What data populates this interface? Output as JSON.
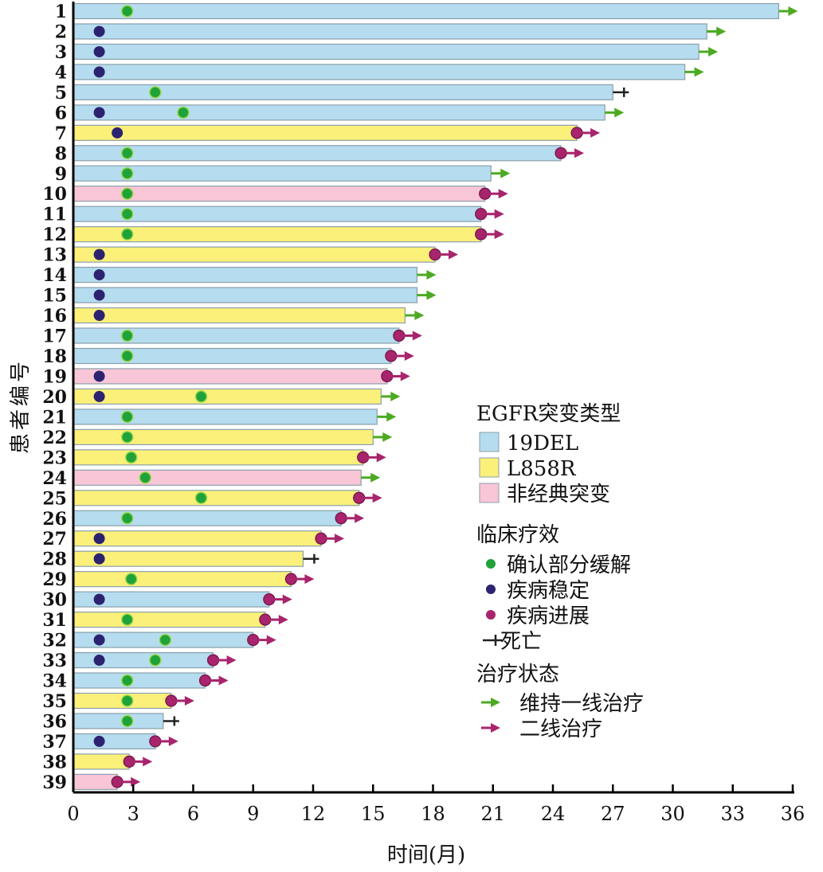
{
  "chart_data": {
    "type": "swimmer",
    "xlabel": "时间(月)",
    "ylabel": "患者编号",
    "xlim": [
      0,
      36
    ],
    "xticks": [
      0,
      3,
      6,
      9,
      12,
      15,
      18,
      21,
      24,
      27,
      30,
      33,
      36
    ],
    "colors": {
      "19DEL": "#b5dcef",
      "L858R": "#fbf07a",
      "uncommon": "#f9c6d8",
      "PR": "#1fa23a",
      "SD": "#2c2370",
      "PD": "#a8246c",
      "continue": "#4caa22",
      "second_line": "#a8246c",
      "death": "#222222"
    },
    "patients": [
      {
        "id": "1",
        "type": "19DEL",
        "duration": 35.3,
        "SD": null,
        "PR": 2.7,
        "end": "continue"
      },
      {
        "id": "2",
        "type": "19DEL",
        "duration": 31.7,
        "SD": 1.3,
        "PR": null,
        "end": "continue"
      },
      {
        "id": "3",
        "type": "19DEL",
        "duration": 31.3,
        "SD": 1.3,
        "PR": null,
        "end": "continue"
      },
      {
        "id": "4",
        "type": "19DEL",
        "duration": 30.6,
        "SD": 1.3,
        "PR": null,
        "end": "continue"
      },
      {
        "id": "5",
        "type": "19DEL",
        "duration": 27.0,
        "SD": null,
        "PR": 4.1,
        "end": "death"
      },
      {
        "id": "6",
        "type": "19DEL",
        "duration": 26.6,
        "SD": 1.3,
        "PR": 5.5,
        "end": "continue"
      },
      {
        "id": "7",
        "type": "L858R",
        "duration": 25.2,
        "SD": 2.2,
        "PR": null,
        "end": "second_line"
      },
      {
        "id": "8",
        "type": "19DEL",
        "duration": 24.4,
        "SD": null,
        "PR": 2.7,
        "end": "second_line"
      },
      {
        "id": "9",
        "type": "19DEL",
        "duration": 20.9,
        "SD": null,
        "PR": 2.7,
        "end": "continue"
      },
      {
        "id": "10",
        "type": "uncommon",
        "duration": 20.6,
        "SD": null,
        "PR": 2.7,
        "end": "second_line"
      },
      {
        "id": "11",
        "type": "19DEL",
        "duration": 20.4,
        "SD": null,
        "PR": 2.7,
        "end": "second_line"
      },
      {
        "id": "12",
        "type": "L858R",
        "duration": 20.4,
        "SD": null,
        "PR": 2.7,
        "end": "second_line"
      },
      {
        "id": "13",
        "type": "L858R",
        "duration": 18.1,
        "SD": 1.3,
        "PR": null,
        "end": "second_line"
      },
      {
        "id": "14",
        "type": "19DEL",
        "duration": 17.2,
        "SD": 1.3,
        "PR": null,
        "end": "continue"
      },
      {
        "id": "15",
        "type": "19DEL",
        "duration": 17.2,
        "SD": 1.3,
        "PR": null,
        "end": "continue"
      },
      {
        "id": "16",
        "type": "L858R",
        "duration": 16.6,
        "SD": 1.3,
        "PR": null,
        "end": "continue"
      },
      {
        "id": "17",
        "type": "19DEL",
        "duration": 16.3,
        "SD": null,
        "PR": 2.7,
        "end": "second_line"
      },
      {
        "id": "18",
        "type": "19DEL",
        "duration": 15.9,
        "SD": null,
        "PR": 2.7,
        "end": "second_line"
      },
      {
        "id": "19",
        "type": "uncommon",
        "duration": 15.7,
        "SD": 1.3,
        "PR": null,
        "end": "second_line"
      },
      {
        "id": "20",
        "type": "L858R",
        "duration": 15.4,
        "SD": 1.3,
        "PR": 6.4,
        "end": "continue"
      },
      {
        "id": "21",
        "type": "19DEL",
        "duration": 15.2,
        "SD": null,
        "PR": 2.7,
        "end": "continue"
      },
      {
        "id": "22",
        "type": "L858R",
        "duration": 15.0,
        "SD": null,
        "PR": 2.7,
        "end": "continue"
      },
      {
        "id": "23",
        "type": "L858R",
        "duration": 14.5,
        "SD": null,
        "PR": 2.9,
        "end": "second_line"
      },
      {
        "id": "24",
        "type": "uncommon",
        "duration": 14.4,
        "SD": null,
        "PR": 3.6,
        "end": "continue"
      },
      {
        "id": "25",
        "type": "L858R",
        "duration": 14.3,
        "SD": null,
        "PR": 6.4,
        "end": "second_line"
      },
      {
        "id": "26",
        "type": "19DEL",
        "duration": 13.4,
        "SD": null,
        "PR": 2.7,
        "end": "second_line"
      },
      {
        "id": "27",
        "type": "L858R",
        "duration": 12.4,
        "SD": 1.3,
        "PR": null,
        "end": "second_line"
      },
      {
        "id": "28",
        "type": "L858R",
        "duration": 11.5,
        "SD": 1.3,
        "PR": null,
        "end": "death"
      },
      {
        "id": "29",
        "type": "L858R",
        "duration": 10.9,
        "SD": null,
        "PR": 2.9,
        "end": "second_line"
      },
      {
        "id": "30",
        "type": "19DEL",
        "duration": 9.8,
        "SD": 1.3,
        "PR": null,
        "end": "second_line"
      },
      {
        "id": "31",
        "type": "L858R",
        "duration": 9.6,
        "SD": null,
        "PR": 2.7,
        "end": "second_line"
      },
      {
        "id": "32",
        "type": "19DEL",
        "duration": 9.0,
        "SD": 1.3,
        "PR": 4.6,
        "end": "second_line"
      },
      {
        "id": "33",
        "type": "19DEL",
        "duration": 7.0,
        "SD": 1.3,
        "PR": 4.1,
        "end": "second_line"
      },
      {
        "id": "34",
        "type": "19DEL",
        "duration": 6.6,
        "SD": null,
        "PR": 2.7,
        "end": "second_line"
      },
      {
        "id": "35",
        "type": "L858R",
        "duration": 4.9,
        "SD": null,
        "PR": 2.7,
        "end": "second_line"
      },
      {
        "id": "36",
        "type": "19DEL",
        "duration": 4.5,
        "SD": null,
        "PR": 2.7,
        "end": "death"
      },
      {
        "id": "37",
        "type": "19DEL",
        "duration": 4.1,
        "SD": 1.3,
        "PR": null,
        "end": "second_line"
      },
      {
        "id": "38",
        "type": "L858R",
        "duration": 2.8,
        "SD": null,
        "PR": null,
        "end": "second_line"
      },
      {
        "id": "39",
        "type": "uncommon",
        "duration": 2.2,
        "SD": null,
        "PR": null,
        "end": "second_line"
      }
    ],
    "legend": {
      "placement": "right-middle",
      "mutation_title": "EGFR突变类型",
      "mutation_items": [
        {
          "key": "19DEL",
          "label": "19DEL"
        },
        {
          "key": "L858R",
          "label": "L858R"
        },
        {
          "key": "uncommon",
          "label": "非经典突变"
        }
      ],
      "response_title": "临床疗效",
      "response_items": [
        {
          "key": "PR",
          "label": "确认部分缓解"
        },
        {
          "key": "SD",
          "label": "疾病稳定"
        },
        {
          "key": "PD",
          "label": "疾病进展"
        },
        {
          "key": "death",
          "label": "死亡"
        }
      ],
      "status_title": "治疗状态",
      "status_items": [
        {
          "key": "continue",
          "label": "维持一线治疗"
        },
        {
          "key": "second_line",
          "label": "二线治疗"
        }
      ]
    }
  }
}
